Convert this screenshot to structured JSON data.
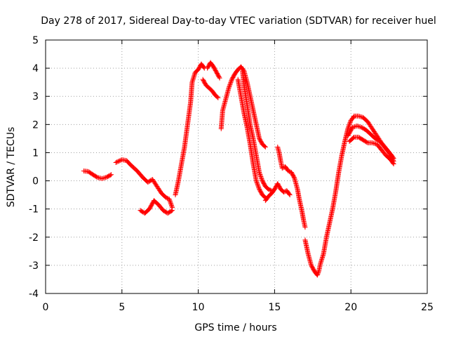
{
  "chart_data": {
    "type": "scatter",
    "title": "Day 278 of 2017, Sidereal Day-to-day VTEC variation (SDTVAR) for receiver huel",
    "xlabel": "GPS time / hours",
    "ylabel": "SDTVAR / TECUs",
    "xlim": [
      0,
      25
    ],
    "ylim": [
      -4,
      5
    ],
    "xticks": [
      "0",
      "5",
      "10",
      "15",
      "20",
      "25"
    ],
    "yticks": [
      "-4",
      "-3",
      "-2",
      "-1",
      "0",
      "1",
      "2",
      "3",
      "4",
      "5"
    ],
    "grid": true,
    "marker": "+",
    "series_color": "#ff0000",
    "series": [
      {
        "name": "seg1",
        "points": [
          [
            2.5,
            0.35
          ],
          [
            2.8,
            0.33
          ],
          [
            3.1,
            0.22
          ],
          [
            3.4,
            0.12
          ],
          [
            3.7,
            0.08
          ],
          [
            4.0,
            0.13
          ],
          [
            4.3,
            0.22
          ]
        ]
      },
      {
        "name": "seg2",
        "points": [
          [
            4.6,
            0.65
          ],
          [
            5.0,
            0.75
          ],
          [
            5.3,
            0.72
          ],
          [
            5.6,
            0.55
          ],
          [
            6.0,
            0.35
          ],
          [
            6.4,
            0.1
          ],
          [
            6.7,
            -0.05
          ],
          [
            7.0,
            0.05
          ],
          [
            7.3,
            -0.2
          ],
          [
            7.6,
            -0.45
          ],
          [
            7.9,
            -0.6
          ],
          [
            8.1,
            -0.65
          ],
          [
            8.3,
            -0.95
          ]
        ]
      },
      {
        "name": "seg3",
        "points": [
          [
            6.2,
            -1.05
          ],
          [
            6.5,
            -1.15
          ],
          [
            6.8,
            -1.0
          ],
          [
            7.1,
            -0.7
          ],
          [
            7.4,
            -0.85
          ],
          [
            7.7,
            -1.05
          ],
          [
            8.0,
            -1.15
          ],
          [
            8.3,
            -1.05
          ]
        ]
      },
      {
        "name": "seg4",
        "points": [
          [
            8.5,
            -0.5
          ],
          [
            8.7,
            0.0
          ],
          [
            8.9,
            0.6
          ],
          [
            9.1,
            1.2
          ],
          [
            9.3,
            2.0
          ],
          [
            9.5,
            2.8
          ],
          [
            9.6,
            3.5
          ],
          [
            9.8,
            3.85
          ],
          [
            10.0,
            3.95
          ],
          [
            10.2,
            4.15
          ],
          [
            10.4,
            4.0
          ]
        ]
      },
      {
        "name": "seg5",
        "points": [
          [
            10.3,
            3.6
          ],
          [
            10.5,
            3.4
          ],
          [
            10.7,
            3.3
          ],
          [
            10.9,
            3.2
          ],
          [
            11.1,
            3.05
          ],
          [
            11.3,
            2.95
          ]
        ]
      },
      {
        "name": "seg6",
        "points": [
          [
            10.6,
            4.0
          ],
          [
            10.8,
            4.2
          ],
          [
            11.0,
            4.05
          ],
          [
            11.2,
            3.85
          ],
          [
            11.4,
            3.65
          ]
        ]
      },
      {
        "name": "seg7",
        "points": [
          [
            11.5,
            1.85
          ],
          [
            11.6,
            2.5
          ],
          [
            11.8,
            2.9
          ],
          [
            12.0,
            3.3
          ],
          [
            12.2,
            3.6
          ],
          [
            12.4,
            3.8
          ],
          [
            12.6,
            3.95
          ],
          [
            12.8,
            4.05
          ],
          [
            13.0,
            3.9
          ],
          [
            13.2,
            3.5
          ],
          [
            13.4,
            3.0
          ],
          [
            13.6,
            2.5
          ],
          [
            13.8,
            2.0
          ],
          [
            14.0,
            1.5
          ],
          [
            14.2,
            1.3
          ],
          [
            14.4,
            1.2
          ]
        ]
      },
      {
        "name": "seg8",
        "points": [
          [
            12.6,
            3.6
          ],
          [
            12.8,
            3.0
          ],
          [
            13.0,
            2.4
          ],
          [
            13.2,
            1.9
          ],
          [
            13.4,
            1.3
          ],
          [
            13.6,
            0.6
          ],
          [
            13.8,
            0.0
          ],
          [
            14.0,
            -0.3
          ],
          [
            14.2,
            -0.5
          ],
          [
            14.4,
            -0.6
          ]
        ]
      },
      {
        "name": "seg9",
        "points": [
          [
            12.9,
            3.9
          ],
          [
            13.0,
            3.4
          ],
          [
            13.2,
            2.7
          ],
          [
            13.4,
            2.0
          ],
          [
            13.6,
            1.5
          ],
          [
            13.8,
            0.9
          ],
          [
            14.0,
            0.3
          ],
          [
            14.2,
            0.0
          ],
          [
            14.4,
            -0.2
          ],
          [
            14.6,
            -0.3
          ],
          [
            14.8,
            -0.35
          ]
        ]
      },
      {
        "name": "seg10",
        "points": [
          [
            14.4,
            -0.7
          ],
          [
            14.6,
            -0.55
          ],
          [
            14.8,
            -0.45
          ],
          [
            15.0,
            -0.3
          ],
          [
            15.2,
            -0.1
          ],
          [
            15.4,
            -0.3
          ],
          [
            15.6,
            -0.4
          ],
          [
            15.8,
            -0.35
          ],
          [
            16.0,
            -0.5
          ]
        ]
      },
      {
        "name": "seg11",
        "points": [
          [
            15.2,
            1.2
          ],
          [
            15.3,
            1.0
          ],
          [
            15.4,
            0.7
          ],
          [
            15.5,
            0.45
          ],
          [
            15.7,
            0.5
          ],
          [
            15.9,
            0.35
          ],
          [
            16.1,
            0.3
          ],
          [
            16.3,
            0.1
          ],
          [
            16.5,
            -0.3
          ],
          [
            16.6,
            -0.6
          ],
          [
            16.8,
            -1.1
          ],
          [
            16.9,
            -1.4
          ],
          [
            17.0,
            -1.65
          ]
        ]
      },
      {
        "name": "seg12",
        "points": [
          [
            17.0,
            -2.1
          ],
          [
            17.2,
            -2.6
          ],
          [
            17.4,
            -3.0
          ],
          [
            17.6,
            -3.2
          ],
          [
            17.8,
            -3.35
          ],
          [
            17.9,
            -3.2
          ],
          [
            18.0,
            -2.95
          ],
          [
            18.2,
            -2.6
          ],
          [
            18.4,
            -2.0
          ],
          [
            18.6,
            -1.5
          ],
          [
            18.8,
            -1.0
          ],
          [
            19.0,
            -0.4
          ],
          [
            19.2,
            0.3
          ],
          [
            19.4,
            0.9
          ],
          [
            19.6,
            1.4
          ],
          [
            19.8,
            1.85
          ],
          [
            20.0,
            2.15
          ],
          [
            20.2,
            2.28
          ]
        ]
      },
      {
        "name": "seg13",
        "points": [
          [
            20.2,
            2.3
          ],
          [
            20.5,
            2.3
          ],
          [
            20.8,
            2.25
          ],
          [
            21.1,
            2.1
          ],
          [
            21.4,
            1.85
          ],
          [
            21.7,
            1.6
          ],
          [
            22.0,
            1.35
          ],
          [
            22.3,
            1.15
          ],
          [
            22.6,
            0.95
          ],
          [
            22.8,
            0.8
          ]
        ]
      },
      {
        "name": "seg14",
        "points": [
          [
            19.8,
            1.6
          ],
          [
            20.1,
            1.9
          ],
          [
            20.4,
            1.95
          ],
          [
            20.7,
            1.9
          ],
          [
            21.0,
            1.8
          ],
          [
            21.3,
            1.65
          ],
          [
            21.6,
            1.5
          ],
          [
            21.9,
            1.4
          ],
          [
            22.2,
            1.2
          ],
          [
            22.5,
            1.0
          ],
          [
            22.8,
            0.7
          ]
        ]
      },
      {
        "name": "seg15",
        "points": [
          [
            19.9,
            1.4
          ],
          [
            20.2,
            1.55
          ],
          [
            20.5,
            1.55
          ],
          [
            20.8,
            1.45
          ],
          [
            21.1,
            1.35
          ],
          [
            21.4,
            1.35
          ],
          [
            21.7,
            1.3
          ],
          [
            22.0,
            1.1
          ],
          [
            22.3,
            0.9
          ],
          [
            22.6,
            0.75
          ],
          [
            22.8,
            0.6
          ]
        ]
      }
    ]
  }
}
